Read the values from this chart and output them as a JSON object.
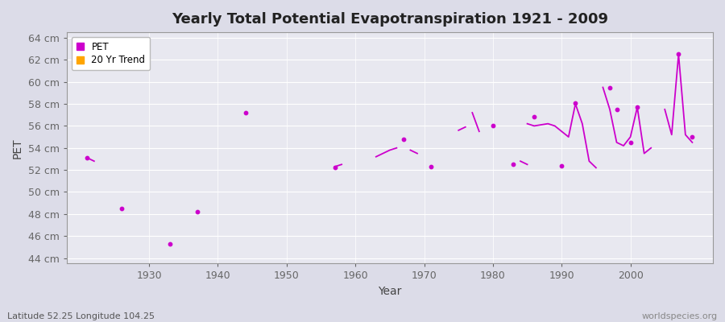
{
  "title": "Yearly Total Potential Evapotranspiration 1921 - 2009",
  "xlabel": "Year",
  "ylabel": "PET",
  "subtitle": "Latitude 52.25 Longitude 104.25",
  "watermark": "worldspecies.org",
  "pet_color": "#CC00CC",
  "trend_color": "#FF8800",
  "background_color": "#E8E8F0",
  "grid_color": "#FFFFFF",
  "ylim": [
    43.5,
    64.5
  ],
  "yticks": [
    44,
    46,
    48,
    50,
    52,
    54,
    56,
    58,
    60,
    62,
    64
  ],
  "ytick_labels": [
    "44 cm",
    "46 cm",
    "48 cm",
    "50 cm",
    "52 cm",
    "54 cm",
    "56 cm",
    "58 cm",
    "60 cm",
    "62 cm",
    "64 cm"
  ],
  "xlim": [
    1918,
    2012
  ],
  "pet_points": [
    [
      1921,
      53.1
    ],
    [
      1926,
      48.5
    ],
    [
      1933,
      45.3
    ],
    [
      1937,
      48.2
    ],
    [
      1944,
      57.2
    ],
    [
      1957,
      52.2
    ],
    [
      1967,
      54.8
    ],
    [
      1971,
      52.3
    ],
    [
      1980,
      56.0
    ],
    [
      1983,
      52.5
    ],
    [
      1986,
      56.8
    ],
    [
      1990,
      52.4
    ],
    [
      1992,
      58.1
    ],
    [
      1997,
      59.5
    ],
    [
      1998,
      57.5
    ],
    [
      2000,
      54.5
    ],
    [
      2001,
      57.7
    ],
    [
      2007,
      62.5
    ],
    [
      2009,
      55.0
    ]
  ],
  "trend_segments": [
    [
      [
        1921,
        53.1
      ],
      [
        1922,
        52.8
      ]
    ],
    [
      [
        1957,
        52.3
      ],
      [
        1958,
        52.5
      ]
    ],
    [
      [
        1963,
        53.2
      ],
      [
        1964,
        53.5
      ],
      [
        1965,
        53.8
      ],
      [
        1966,
        54.0
      ]
    ],
    [
      [
        1968,
        53.8
      ],
      [
        1969,
        53.5
      ]
    ],
    [
      [
        1975,
        55.6
      ],
      [
        1976,
        55.9
      ]
    ],
    [
      [
        1977,
        57.2
      ],
      [
        1978,
        55.5
      ]
    ],
    [
      [
        1984,
        52.8
      ],
      [
        1985,
        52.5
      ]
    ],
    [
      [
        1985,
        56.2
      ],
      [
        1986,
        56.0
      ],
      [
        1987,
        56.1
      ],
      [
        1988,
        56.2
      ],
      [
        1989,
        56.0
      ],
      [
        1990,
        55.5
      ],
      [
        1991,
        55.0
      ],
      [
        1992,
        58.0
      ],
      [
        1993,
        56.2
      ],
      [
        1994,
        52.8
      ],
      [
        1995,
        52.2
      ]
    ],
    [
      [
        1996,
        59.5
      ],
      [
        1997,
        57.5
      ],
      [
        1998,
        54.5
      ],
      [
        1999,
        54.2
      ],
      [
        2000,
        55.0
      ],
      [
        2001,
        57.7
      ],
      [
        2002,
        53.5
      ],
      [
        2003,
        54.0
      ]
    ],
    [
      [
        2005,
        57.5
      ],
      [
        2006,
        55.2
      ],
      [
        2007,
        62.5
      ],
      [
        2008,
        55.2
      ],
      [
        2009,
        54.5
      ]
    ]
  ]
}
